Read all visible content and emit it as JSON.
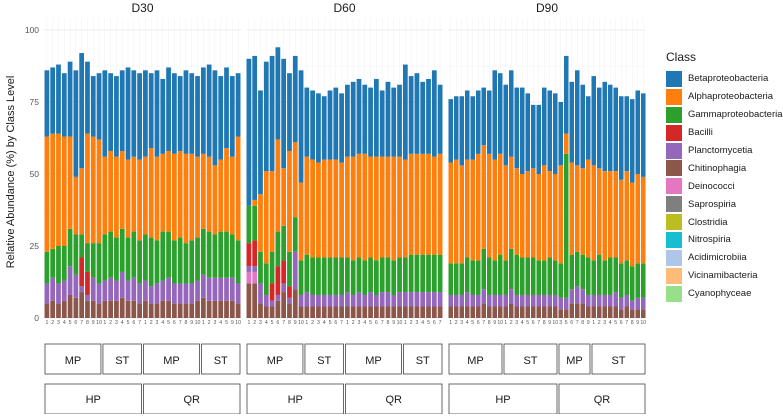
{
  "chart_data": {
    "type": "bar",
    "stacked": true,
    "ylabel": "Relative Abundance (%) by Class Level",
    "xlabel": "",
    "ylim": [
      0,
      100
    ],
    "yticks": [
      "0",
      "25",
      "50",
      "75",
      "100"
    ],
    "panels": [
      {
        "name": "D30",
        "groups": [
          {
            "site": "HP",
            "treatment": "MP",
            "samples": [
              "1",
              "2",
              "3",
              "4",
              "5",
              "6",
              "7",
              "8",
              "9",
              "10"
            ],
            "totals": [
              86,
              87,
              88,
              85,
              89,
              86,
              90,
              87,
              84,
              85
            ],
            "beta": [
              23,
              23,
              24,
              22,
              26,
              37,
              40,
              25,
              21,
              23
            ],
            "alpha": [
              40,
              40,
              39,
              38,
              32,
              20,
              23,
              38,
              37,
              36
            ],
            "gamma": [
              11,
              10,
              13,
              12,
              13,
              14,
              8,
              10,
              12,
              14
            ]
          },
          {
            "site": "HP",
            "treatment": "ST",
            "samples": [
              "1",
              "2",
              "3",
              "4",
              "5",
              "6",
              "7"
            ],
            "totals": [
              86,
              85,
              84,
              86,
              87,
              86,
              85
            ],
            "beta": [
              30,
              27,
              28,
              28,
              32,
              30,
              30
            ],
            "alpha": [
              27,
              28,
              28,
              27,
              27,
              26,
              28
            ],
            "gamma": [
              16,
              16,
              15,
              15,
              15,
              16,
              15
            ]
          },
          {
            "site": "QR",
            "treatment": "MP",
            "samples": [
              "1",
              "2",
              "3",
              "4",
              "5",
              "6",
              "7",
              "8",
              "9",
              "10"
            ],
            "totals": [
              86,
              85,
              86,
              83,
              87,
              85,
              84,
              86,
              85,
              84
            ],
            "beta": [
              30,
              26,
              30,
              26,
              29,
              28,
              26,
              29,
              28,
              28
            ],
            "alpha": [
              27,
              31,
              29,
              27,
              28,
              30,
              30,
              31,
              30,
              28
            ],
            "gamma": [
              16,
              17,
              15,
              17,
              16,
              15,
              16,
              14,
              15,
              15
            ]
          },
          {
            "site": "QR",
            "treatment": "ST",
            "samples": [
              "1",
              "2",
              "3",
              "4",
              "5",
              "9",
              "10"
            ],
            "totals": [
              87,
              88,
              86,
              84,
              87,
              84,
              85
            ],
            "beta": [
              30,
              32,
              33,
              29,
              28,
              28,
              22
            ],
            "alpha": [
              26,
              26,
              24,
              25,
              29,
              27,
              36
            ],
            "gamma": [
              16,
              16,
              15,
              16,
              16,
              15,
              15
            ]
          }
        ]
      },
      {
        "name": "D60",
        "groups": [
          {
            "site": "HP",
            "treatment": "MP",
            "samples": [
              "1",
              "2",
              "3",
              "4",
              "5",
              "6",
              "7",
              "8",
              "9",
              "10"
            ],
            "totals": [
              90,
              90,
              79,
              89,
              87,
              90,
              90,
              85,
              91,
              86
            ],
            "beta": [
              51,
              50,
              36,
              38,
              40,
              32,
              38,
              27,
              30,
              39
            ],
            "alpha": [
              0,
              2,
              20,
              32,
              28,
              32,
              20,
              35,
              26,
              27
            ],
            "gamma": [
              13,
              12,
              11,
              11,
              11,
              12,
              12,
              12,
              12,
              12
            ]
          },
          {
            "site": "HP",
            "treatment": "ST",
            "samples": [
              "1",
              "2",
              "3",
              "4",
              "5",
              "6",
              "7"
            ],
            "totals": [
              80,
              79,
              78,
              77,
              79,
              80,
              78
            ],
            "beta": [
              24,
              24,
              24,
              22,
              24,
              25,
              24
            ],
            "alpha": [
              34,
              34,
              33,
              34,
              34,
              34,
              33
            ],
            "gamma": [
              13,
              13,
              13,
              13,
              13,
              13,
              13
            ]
          },
          {
            "site": "QR",
            "treatment": "MP",
            "samples": [
              "1",
              "2",
              "3",
              "4",
              "5",
              "6",
              "7",
              "8",
              "9",
              "10"
            ],
            "totals": [
              81,
              82,
              83,
              81,
              80,
              83,
              79,
              82,
              80,
              81
            ],
            "beta": [
              25,
              26,
              26,
              24,
              24,
              27,
              23,
              26,
              24,
              25
            ],
            "alpha": [
              35,
              36,
              36,
              37,
              35,
              36,
              35,
              35,
              36,
              35
            ],
            "gamma": [
              12,
              12,
              12,
              12,
              12,
              12,
              12,
              12,
              12,
              12
            ]
          },
          {
            "site": "QR",
            "treatment": "ST",
            "samples": [
              "1",
              "2",
              "3",
              "4",
              "5",
              "6",
              "7"
            ],
            "totals": [
              88,
              84,
              85,
              82,
              83,
              86,
              81
            ],
            "beta": [
              33,
              27,
              28,
              25,
              26,
              30,
              24
            ],
            "alpha": [
              34,
              35,
              35,
              35,
              35,
              34,
              35
            ],
            "gamma": [
              12,
              13,
              13,
              13,
              13,
              13,
              13
            ]
          }
        ]
      },
      {
        "name": "D90",
        "groups": [
          {
            "site": "HP",
            "treatment": "MP",
            "samples": [
              "1",
              "2",
              "3",
              "4",
              "5",
              "6",
              "7",
              "8",
              "9",
              "10"
            ],
            "totals": [
              76,
              77,
              77,
              79,
              77,
              79,
              80,
              79,
              86,
              85
            ],
            "beta": [
              22,
              22,
              24,
              24,
              22,
              22,
              20,
              22,
              31,
              28
            ],
            "alpha": [
              35,
              36,
              34,
              34,
              35,
              37,
              36,
              36,
              35,
              35
            ],
            "gamma": [
              11,
              11,
              11,
              12,
              12,
              12,
              14,
              13,
              12,
              14
            ]
          },
          {
            "site": "HP",
            "treatment": "ST",
            "samples": [
              "1",
              "2",
              "3",
              "4",
              "5",
              "6",
              "7",
              "8",
              "9",
              "10"
            ],
            "totals": [
              81,
              86,
              80,
              80,
              78,
              74,
              74,
              80,
              79,
              78
            ],
            "beta": [
              28,
              30,
              28,
              30,
              27,
              22,
              24,
              27,
              28,
              28
            ],
            "alpha": [
              33,
              32,
              30,
              29,
              30,
              31,
              30,
              33,
              30,
              30
            ],
            "gamma": [
              12,
              14,
              14,
              13,
              13,
              13,
              12,
              12,
              13,
              12
            ]
          },
          {
            "site": "QR",
            "treatment": "MP",
            "samples": [
              "3",
              "5",
              "6",
              "7",
              "8",
              "9"
            ],
            "totals": [
              75,
              91,
              82,
              86,
              81,
              77
            ],
            "beta": [
              22,
              27,
              28,
              33,
              29,
              22
            ],
            "alpha": [
              34,
              7,
              32,
              30,
              30,
              34
            ],
            "gamma": [
              12,
              50,
              12,
              12,
              12,
              13
            ]
          },
          {
            "site": "QR",
            "treatment": "ST",
            "samples": [
              "1",
              "2",
              "3",
              "4",
              "5",
              "6",
              "7",
              "8",
              "9",
              "10"
            ],
            "totals": [
              84,
              80,
              82,
              81,
              80,
              77,
              77,
              76,
              79,
              78
            ],
            "beta": [
              31,
              28,
              31,
              30,
              29,
              29,
              26,
              29,
              29,
              29
            ],
            "alpha": [
              33,
              30,
              31,
              30,
              30,
              29,
              31,
              29,
              31,
              30
            ],
            "gamma": [
              12,
              14,
              12,
              13,
              12,
              12,
              12,
              12,
              12,
              12
            ]
          }
        ]
      }
    ],
    "minor_classes": {
      "Bacilli": {
        "panel": "D60",
        "samples": {
          "1": 8,
          "2": 9,
          "5": 6,
          "6": 10,
          "7": 8,
          "8": 4
        }
      },
      "Deinococci": {
        "panel": "D60",
        "samples": {
          "1": 4,
          "2": 4
        }
      },
      "Bacilli_D30": {
        "panel": "D30",
        "samples": {
          "7": 10,
          "8": 8
        }
      }
    },
    "series": [
      {
        "key": "cyan",
        "name": "Cyanophyceae",
        "color": "#98DF8A"
      },
      {
        "key": "vicin",
        "name": "Vicinamibacteria",
        "color": "#FFBB78"
      },
      {
        "key": "acidi",
        "name": "Acidimicrobiia",
        "color": "#AEC7E8"
      },
      {
        "key": "nitro",
        "name": "Nitrospiria",
        "color": "#17BECF"
      },
      {
        "key": "clost",
        "name": "Clostridia",
        "color": "#BCBD22"
      },
      {
        "key": "sapro",
        "name": "Saprospiria",
        "color": "#7F7F7F"
      },
      {
        "key": "deino",
        "name": "Deinococci",
        "color": "#E377C2"
      },
      {
        "key": "chiti",
        "name": "Chitinophagia",
        "color": "#8C564B"
      },
      {
        "key": "planc",
        "name": "Planctomycetia",
        "color": "#9467BD"
      },
      {
        "key": "bacil",
        "name": "Bacilli",
        "color": "#D62728"
      },
      {
        "key": "gamma",
        "name": "Gammaproteobacteria",
        "color": "#2CA02C"
      },
      {
        "key": "alpha",
        "name": "Alphaproteobacteria",
        "color": "#FF7F0E"
      },
      {
        "key": "beta",
        "name": "Betaproteobacteria",
        "color": "#1F77B4"
      }
    ],
    "legend": {
      "title": "Class",
      "position": "right",
      "entries": [
        "Betaproteobacteria",
        "Alphaproteobacteria",
        "Gammaproteobacteria",
        "Bacilli",
        "Planctomycetia",
        "Chitinophagia",
        "Deinococci",
        "Saprospiria",
        "Clostridia",
        "Nitrospiria",
        "Acidimicrobiia",
        "Vicinamibacteria",
        "Cyanophyceae"
      ]
    },
    "treatment_labels": [
      "MP",
      "ST",
      "MP",
      "ST"
    ],
    "site_labels": [
      "HP",
      "QR"
    ]
  },
  "legend_colors": {
    "Betaproteobacteria": "#1F77B4",
    "Alphaproteobacteria": "#FF7F0E",
    "Gammaproteobacteria": "#2CA02C",
    "Bacilli": "#D62728",
    "Planctomycetia": "#9467BD",
    "Chitinophagia": "#8C564B",
    "Deinococci": "#E377C2",
    "Saprospiria": "#7F7F7F",
    "Clostridia": "#BCBD22",
    "Nitrospiria": "#17BECF",
    "Acidimicrobiia": "#AEC7E8",
    "Vicinamibacteria": "#FFBB78",
    "Cyanophyceae": "#98DF8A"
  }
}
